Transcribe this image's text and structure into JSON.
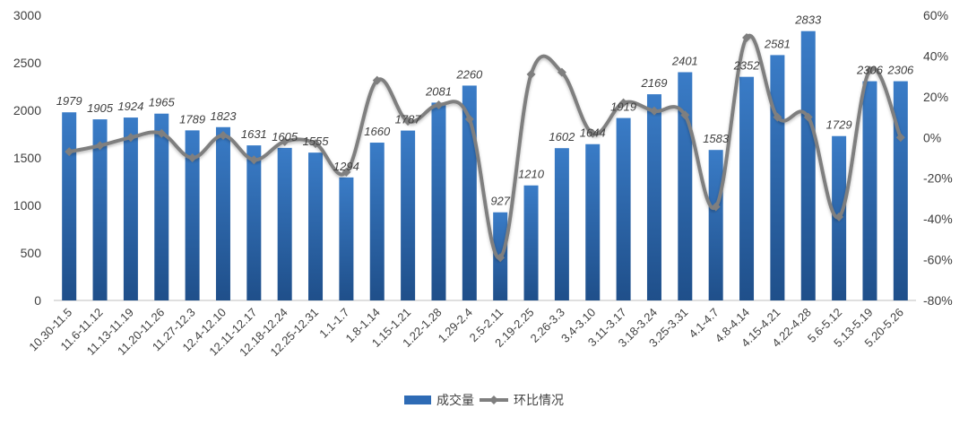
{
  "chart_data": {
    "type": "bar",
    "categories": [
      "10.30-11.5",
      "11.6-11.12",
      "11.13-11.19",
      "11.20-11.26",
      "11.27-12.3",
      "12.4-12.10",
      "12.11-12.17",
      "12.18-12.24",
      "12.25-12.31",
      "1.1-1.7",
      "1.8-1.14",
      "1.15-1.21",
      "1.22-1.28",
      "1.29-2.4",
      "2.5-2.11",
      "2.19-2.25",
      "2.26-3.3",
      "3.4-3.10",
      "3.11-3.17",
      "3.18-3.24",
      "3.25-3.31",
      "4.1-4.7",
      "4.8-4.14",
      "4.15-4.21",
      "4.22-4.28",
      "5.6-5.12",
      "5.13-5.19",
      "5.20-5.26"
    ],
    "series": [
      {
        "name": "成交量",
        "type": "bar",
        "axis": "left",
        "color": "#2e6bb5",
        "values": [
          1979,
          1905,
          1924,
          1965,
          1789,
          1823,
          1631,
          1605,
          1555,
          1294,
          1660,
          1787,
          2081,
          2260,
          927,
          1210,
          1602,
          1644,
          1919,
          2169,
          2401,
          1583,
          2352,
          2581,
          2833,
          1729,
          2306,
          2306
        ]
      },
      {
        "name": "环比情况",
        "type": "line",
        "axis": "right",
        "color": "#7f7f7f",
        "values": [
          -7,
          -4,
          0,
          2,
          -10,
          1,
          -11,
          -2,
          -3,
          -17,
          28,
          8,
          16,
          9,
          -59,
          31,
          32,
          2,
          17,
          13,
          11,
          -34,
          49,
          10,
          10,
          -39,
          33,
          0
        ]
      }
    ],
    "y_left": {
      "min": 0,
      "max": 3000,
      "step": 500,
      "ticks": [
        "0",
        "500",
        "1000",
        "1500",
        "2000",
        "2500",
        "3000"
      ]
    },
    "y_right": {
      "min": -80,
      "max": 60,
      "step": 20,
      "ticks": [
        "-80%",
        "-60%",
        "-40%",
        "-20%",
        "0%",
        "20%",
        "40%",
        "60%"
      ]
    },
    "title": "",
    "xlabel": "",
    "ylabel": "",
    "grid": false,
    "legend_position": "bottom"
  }
}
